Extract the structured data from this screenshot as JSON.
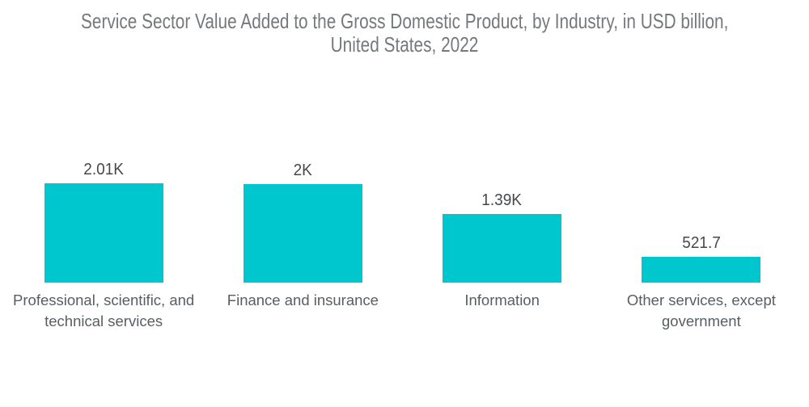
{
  "title": {
    "lines": [
      "Service Sector Value Added to the Gross Domestic Product, by Industry, in USD billion,",
      "United States, 2022"
    ]
  },
  "chart_data": {
    "type": "bar",
    "title": "Service Sector Value Added to the Gross Domestic Product, by Industry, in USD billion, United States, 2022",
    "unit": "USD billion",
    "categories": [
      "Professional, scientific, and technical services",
      "Finance and insurance",
      "Information",
      "Other services, except government"
    ],
    "values": [
      2010,
      2000,
      1390,
      521.7
    ],
    "value_labels": [
      "2.01K",
      "2K",
      "1.39K",
      "521.7"
    ],
    "bar_color": "#00c6ce",
    "ylim": [
      0,
      2010
    ],
    "grid": false,
    "legend": false,
    "axes_visible": false
  },
  "colors": {
    "background": "#ffffff",
    "bar": "#00c6ce",
    "title_text": "#75797c",
    "value_text": "#46494c",
    "category_text": "#595e62"
  }
}
